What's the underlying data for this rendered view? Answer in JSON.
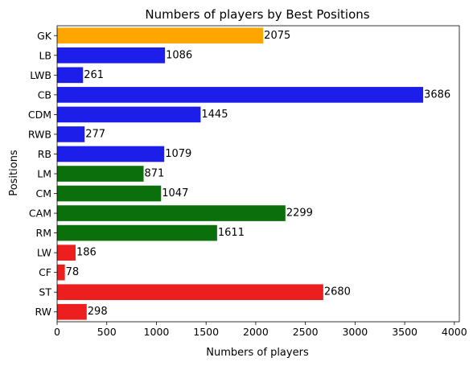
{
  "chart_data": {
    "type": "bar",
    "orientation": "horizontal",
    "title": "Numbers of players by Best Positions",
    "xlabel": "Numbers of players",
    "ylabel": "Positions",
    "categories": [
      "GK",
      "LB",
      "LWB",
      "CB",
      "CDM",
      "RWB",
      "RB",
      "LM",
      "CM",
      "CAM",
      "RM",
      "LW",
      "CF",
      "ST",
      "RW"
    ],
    "values": [
      2075,
      1086,
      261,
      3686,
      1445,
      277,
      1079,
      871,
      1047,
      2299,
      1611,
      186,
      78,
      2680,
      298
    ],
    "bar_colors": [
      "#ffa500",
      "#1e1eeb",
      "#1e1eeb",
      "#1e1eeb",
      "#1e1eeb",
      "#1e1eeb",
      "#1e1eeb",
      "#0b700b",
      "#0b700b",
      "#0b700b",
      "#0b700b",
      "#ec1e1e",
      "#ec1e1e",
      "#ec1e1e",
      "#ec1e1e"
    ],
    "xlim": [
      0,
      4050
    ],
    "xticks": [
      0,
      500,
      1000,
      1500,
      2000,
      2500,
      3000,
      3500,
      4000
    ],
    "grid": false,
    "legend": false
  }
}
